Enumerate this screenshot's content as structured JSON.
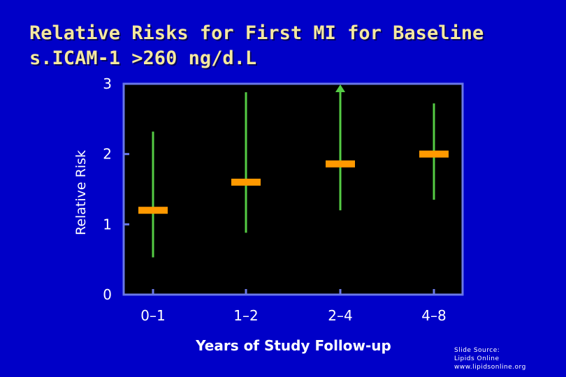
{
  "chart_data": {
    "type": "error-bar",
    "title_lines": [
      "Relative Risks for First MI for Baseline",
      "s.ICAM-1 >260 ng/d.L"
    ],
    "xlabel": "Years of Study Follow-up",
    "ylabel": "Relative Risk",
    "categories": [
      "0–1",
      "1–2",
      "2–4",
      "4–8"
    ],
    "y_ticks": [
      "0",
      "1",
      "2",
      "3"
    ],
    "ylim": [
      0,
      3
    ],
    "series": [
      {
        "values": [
          1.2,
          1.6,
          1.86,
          2.0
        ],
        "lower": [
          0.53,
          0.88,
          1.2,
          1.35
        ],
        "upper": [
          2.32,
          2.88,
          2.97,
          2.72
        ],
        "upper_arrow": [
          false,
          false,
          true,
          false
        ]
      }
    ],
    "plot_background": "#000000",
    "frame_color": "#6a78e8",
    "point_color": "#ff9900",
    "interval_color": "#55cc44",
    "grid": false,
    "legend": "none"
  },
  "footer": {
    "source_lines": [
      "Slide Source:",
      "Lipids Online",
      "www.lipidsonline.org"
    ]
  }
}
